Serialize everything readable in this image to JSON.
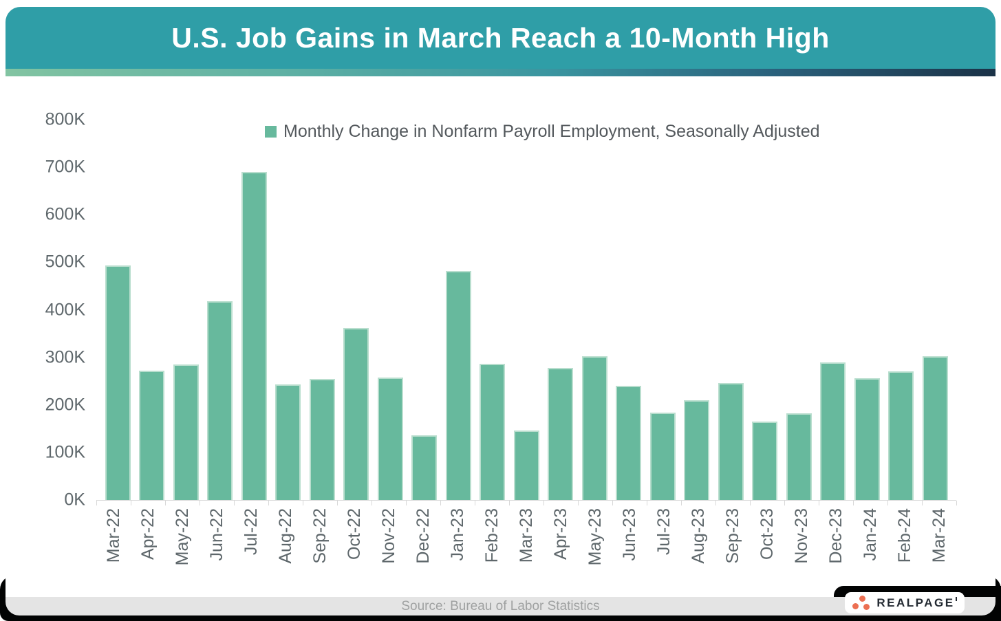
{
  "header": {
    "title": "U.S. Job Gains in March Reach a 10-Month High"
  },
  "legend": {
    "label": "Monthly Change in Nonfarm Payroll Employment, Seasonally Adjusted"
  },
  "footer": {
    "source": "Source: Bureau of Labor Statistics",
    "logo_text": "REALPAGE"
  },
  "colors": {
    "header_teal": "#2F9EA7",
    "bar_green": "#67B99D",
    "bar_edge": "#B9DECE",
    "accent_gradient_left": "#82C4A2",
    "accent_gradient_right": "#1B3247",
    "axis_text_gray": "#5E676B",
    "legend_text_gray": "#53585C",
    "source_band_gray": "#E4E4E4",
    "source_text_gray": "#9FA1A1",
    "bottom_band_black": "#020303",
    "logo_dot_orange": "#EC6F52",
    "logo_text_navy": "#232A32"
  },
  "chart_data": {
    "type": "bar",
    "title": "U.S. Job Gains in March Reach a 10-Month High",
    "series_name": "Monthly Change in Nonfarm Payroll Employment, Seasonally Adjusted",
    "unit": "thousands of jobs (K)",
    "categories": [
      "Mar-22",
      "Apr-22",
      "May-22",
      "Jun-22",
      "Jul-22",
      "Aug-22",
      "Sep-22",
      "Oct-22",
      "Nov-22",
      "Dec-22",
      "Jan-23",
      "Feb-23",
      "Mar-23",
      "Apr-23",
      "May-23",
      "Jun-23",
      "Jul-23",
      "Aug-23",
      "Sep-23",
      "Oct-23",
      "Nov-23",
      "Dec-23",
      "Jan-24",
      "Feb-24",
      "Mar-24"
    ],
    "values": [
      494,
      272,
      285,
      418,
      690,
      243,
      255,
      362,
      258,
      136,
      482,
      287,
      146,
      278,
      303,
      240,
      184,
      210,
      246,
      165,
      182,
      290,
      256,
      270,
      303
    ],
    "xlabel": "",
    "ylabel": "",
    "ylim": [
      0,
      800
    ],
    "ytick_step": 100,
    "ytick_labels": [
      "0K",
      "100K",
      "200K",
      "300K",
      "400K",
      "500K",
      "600K",
      "700K",
      "800K"
    ],
    "grid": false,
    "legend_position": "top-center",
    "x_tick_rotation_deg": 90
  }
}
